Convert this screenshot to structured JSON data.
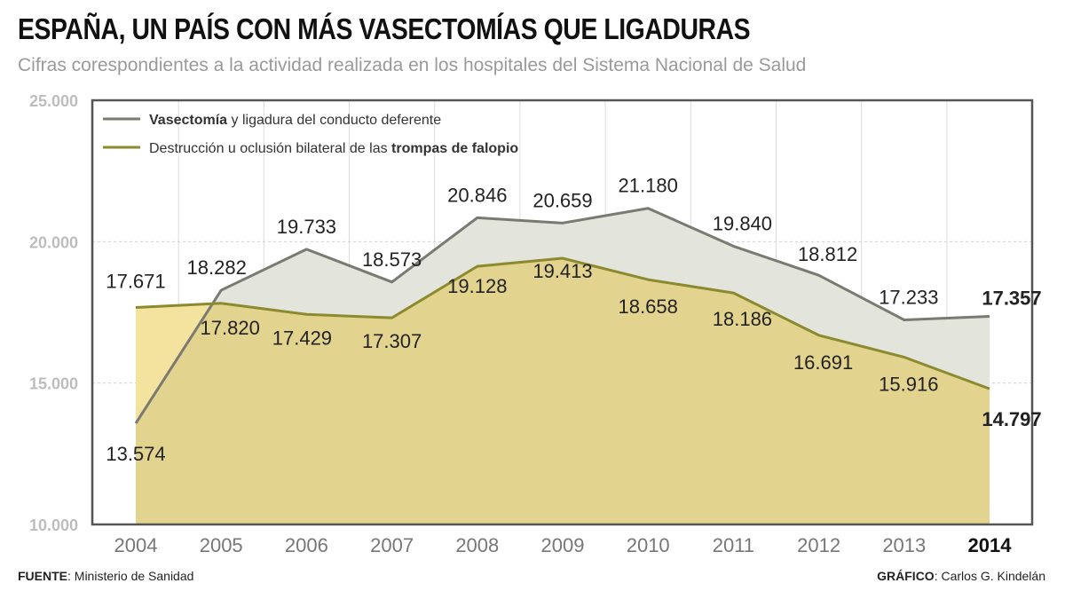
{
  "chart_data": {
    "type": "area",
    "title": "ESPAÑA, UN PAÍS CON MÁS VASECTOMÍAS QUE LIGADURAS",
    "subtitle": "Cifras corespondientes a la actividad realizada en los hospitales del Sistema Nacional de Salud",
    "xlabel": "",
    "ylabel": "",
    "categories": [
      "2004",
      "2005",
      "2006",
      "2007",
      "2008",
      "2009",
      "2010",
      "2011",
      "2012",
      "2013",
      "2014"
    ],
    "ylim": [
      10000,
      25000
    ],
    "yticks": [
      10000,
      15000,
      20000,
      25000
    ],
    "ytick_labels": [
      "10.000",
      "15.000",
      "20.000",
      "25.000"
    ],
    "grid": true,
    "legend_position": "top-left",
    "series": [
      {
        "name": "Vasectomía y ligadura del conducto deferente",
        "legend_bold": "Vasectomía",
        "legend_rest": " y ligadura del conducto deferente",
        "color": "#7a7a72",
        "fill": "#e3e4dc",
        "values": [
          13574,
          18282,
          19733,
          18573,
          20846,
          20659,
          21180,
          19840,
          18812,
          17233,
          17357
        ],
        "labels": [
          "13.574",
          "18.282",
          "19.733",
          "18.573",
          "20.846",
          "20.659",
          "21.180",
          "19.840",
          "18.812",
          "17.233",
          "17.357"
        ]
      },
      {
        "name": "Destrucción u oclusión bilateral de las trompas de falopio",
        "legend_rest": "Destrucción u oclusión bilateral de las ",
        "legend_bold": "trompas de falopio",
        "color": "#8c8a2e",
        "fill": "#e2d38f",
        "values": [
          17671,
          17820,
          17429,
          17307,
          19128,
          19413,
          18658,
          18186,
          16691,
          15916,
          14797
        ],
        "labels": [
          "17.671",
          "17.820",
          "17.429",
          "17.307",
          "19.128",
          "19.413",
          "18.658",
          "18.186",
          "16.691",
          "15.916",
          "14.797"
        ]
      }
    ]
  },
  "footer": {
    "source_label": "FUENTE",
    "source_text": ": Ministerio de Sanidad",
    "credit_label": "GRÁFICO",
    "credit_text": ": Carlos G. Kindelán"
  }
}
